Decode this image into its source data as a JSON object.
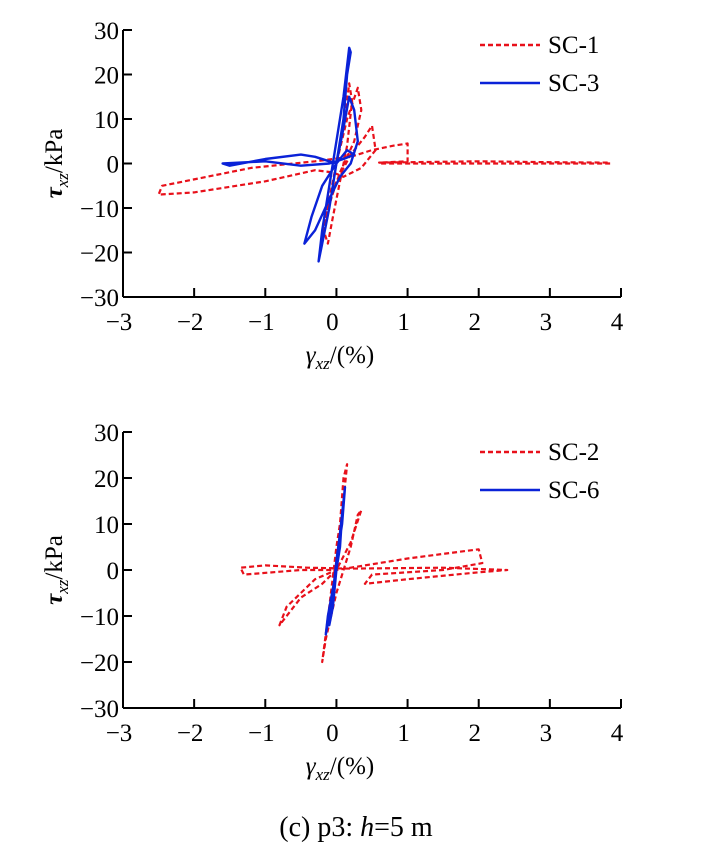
{
  "caption": {
    "prefix": "(c) p3: ",
    "var": "h",
    "suffix": "=5 m"
  },
  "colors": {
    "dashed": "#e8101a",
    "solid": "#0a22d8",
    "axis": "#000000"
  },
  "chart_data": [
    {
      "type": "line",
      "xlabel": {
        "sym": "γ",
        "sub": "xz",
        "unit": "/(%)"
      },
      "ylabel": {
        "sym": "τ",
        "sub": "xz",
        "unit": "/kPa"
      },
      "xlim": [
        -3,
        4
      ],
      "ylim": [
        -30,
        30
      ],
      "xticks": [
        -3,
        -2,
        -1,
        0,
        1,
        2,
        3,
        4
      ],
      "yticks": [
        -30,
        -20,
        -10,
        0,
        10,
        20,
        30
      ],
      "tick_labels_x": [
        "−3",
        "−2",
        "−1",
        "0",
        "1",
        "2",
        "3",
        "4"
      ],
      "tick_labels_y": [
        "−30",
        "−20",
        "−10",
        "0",
        "10",
        "20",
        "30"
      ],
      "legend_position": "top-right",
      "series": [
        {
          "name": "SC-1",
          "style": "dashed",
          "x": [
            0.0,
            0.1,
            0.18,
            0.22,
            0.15,
            0.05,
            -0.05,
            -0.12,
            -0.18,
            -0.1,
            0.0,
            0.15,
            0.3,
            0.35,
            0.25,
            0.05,
            -0.12,
            -0.2,
            -0.15,
            0.0,
            0.2,
            0.4,
            0.5,
            0.55,
            0.35,
            0.1,
            -0.05,
            -0.3,
            -1.0,
            -2.0,
            -2.5,
            -2.45,
            -1.2,
            -0.3,
            0.2,
            0.5,
            0.8,
            1.0,
            1.0,
            0.6,
            2.0,
            3.0,
            3.8,
            3.85,
            2.0,
            0.6
          ],
          "y": [
            0.0,
            8.0,
            18.0,
            14.0,
            4.0,
            -4.0,
            -12.0,
            -18.0,
            -15.0,
            -8.0,
            0.0,
            10.0,
            17.0,
            12.0,
            5.0,
            -2.0,
            -10.0,
            -16.0,
            -12.0,
            -4.0,
            2.0,
            6.0,
            8.5,
            3.0,
            -1.0,
            -3.0,
            -2.0,
            -1.5,
            -4.0,
            -6.5,
            -7.0,
            -5.0,
            -1.0,
            0.5,
            1.5,
            3.0,
            4.0,
            4.5,
            0.5,
            0.2,
            0.5,
            0.3,
            0.2,
            0.0,
            0.0,
            0.0
          ]
        },
        {
          "name": "SC-3",
          "style": "solid",
          "x": [
            0.0,
            0.1,
            0.15,
            0.2,
            0.18,
            0.1,
            0.0,
            -0.1,
            -0.2,
            -0.25,
            -0.2,
            -0.1,
            0.0,
            0.1,
            0.18,
            0.25,
            0.3,
            0.2,
            0.05,
            -0.1,
            -0.3,
            -0.45,
            -0.35,
            -0.2,
            0.0,
            0.15,
            0.25,
            0.1,
            -0.1,
            -0.5,
            -1.0,
            -1.6,
            -1.5,
            -1.0,
            -0.5,
            -0.3,
            -0.1,
            0.0
          ],
          "y": [
            0.0,
            10.0,
            20.0,
            25.0,
            26.0,
            15.0,
            5.0,
            -5.0,
            -15.0,
            -22.0,
            -18.0,
            -10.0,
            0.0,
            8.0,
            15.0,
            12.0,
            5.0,
            0.0,
            -3.0,
            -8.0,
            -15.0,
            -18.0,
            -12.0,
            -5.0,
            0.0,
            3.0,
            2.0,
            1.0,
            0.0,
            -0.5,
            0.5,
            0.0,
            -0.5,
            1.0,
            2.0,
            1.5,
            0.5,
            0.0
          ]
        }
      ]
    },
    {
      "type": "line",
      "xlabel": {
        "sym": "γ",
        "sub": "xz",
        "unit": "/(%)"
      },
      "ylabel": {
        "sym": "τ",
        "sub": "xz",
        "unit": "/kPa"
      },
      "xlim": [
        -3,
        4
      ],
      "ylim": [
        -30,
        30
      ],
      "xticks": [
        -3,
        -2,
        -1,
        0,
        1,
        2,
        3,
        4
      ],
      "yticks": [
        -30,
        -20,
        -10,
        0,
        10,
        20,
        30
      ],
      "tick_labels_x": [
        "−3",
        "−2",
        "−1",
        "0",
        "1",
        "2",
        "3",
        "4"
      ],
      "tick_labels_y": [
        "−30",
        "−20",
        "−10",
        "0",
        "10",
        "20",
        "30"
      ],
      "legend_position": "top-right",
      "series": [
        {
          "name": "SC-2",
          "style": "dashed",
          "x": [
            0.0,
            0.05,
            0.1,
            0.15,
            0.1,
            0.0,
            -0.1,
            -0.2,
            -0.15,
            0.0,
            0.2,
            0.3,
            0.35,
            0.2,
            0.0,
            -0.2,
            -0.5,
            -0.8,
            -0.7,
            -0.3,
            0.0,
            0.4,
            1.0,
            1.5,
            2.0,
            2.05,
            1.5,
            0.5,
            0.4,
            1.0,
            2.0,
            2.4,
            1.5,
            0.2,
            -0.4,
            -1.0,
            -1.35,
            -1.3,
            -0.5,
            0.0
          ],
          "y": [
            0.0,
            10.0,
            20.0,
            23.0,
            15.0,
            5.0,
            -8.0,
            -20.0,
            -15.0,
            -5.0,
            5.0,
            12.0,
            13.0,
            6.0,
            0.0,
            -3.0,
            -6.0,
            -12.0,
            -8.0,
            -2.0,
            0.0,
            1.0,
            2.5,
            3.5,
            4.5,
            1.5,
            0.0,
            -1.0,
            -3.0,
            -2.0,
            -0.5,
            0.0,
            0.5,
            0.3,
            0.5,
            1.0,
            0.5,
            -1.0,
            0.0,
            0.0
          ]
        },
        {
          "name": "SC-6",
          "style": "solid",
          "x": [
            0.0,
            0.05,
            0.1,
            0.12,
            0.08,
            0.0,
            -0.05,
            -0.1,
            -0.15,
            -0.12,
            -0.05,
            0.0,
            0.05,
            0.08,
            0.05,
            0.0,
            -0.05,
            -0.1,
            -0.05,
            0.0
          ],
          "y": [
            0.0,
            8.0,
            15.0,
            18.0,
            10.0,
            2.0,
            -5.0,
            -10.0,
            -14.0,
            -10.0,
            -4.0,
            0.0,
            5.0,
            12.0,
            8.0,
            2.0,
            -5.0,
            -12.0,
            -8.0,
            0.0
          ]
        }
      ]
    }
  ]
}
